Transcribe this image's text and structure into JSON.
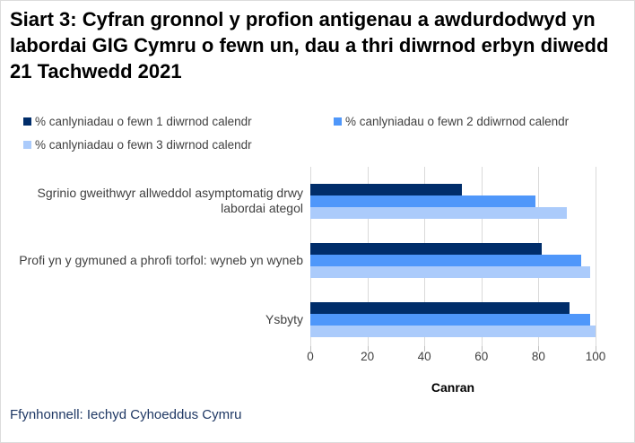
{
  "title": "Siart 3: Cyfran gronnol y profion antigenau a awdurdodwyd yn labordai GIG Cymru o fewn un, dau a thri diwrnod erbyn diwedd 21 Tachwedd 2021",
  "source": "Ffynhonnell: Iechyd Cyhoeddus Cymru",
  "colors": {
    "gridline": "#d9d9d9",
    "text": "#404040",
    "title": "#000000",
    "source_text": "#1f3864"
  },
  "chart_data": {
    "type": "bar",
    "orientation": "horizontal",
    "title": "Siart 3: Cyfran gronnol y profion antigenau a awdurdodwyd yn labordai GIG Cymru o fewn un, dau a thri diwrnod erbyn diwedd 21 Tachwedd 2021",
    "categories": [
      "Sgrinio gweithwyr allweddol asymptomatig drwy labordai ategol",
      "Profi yn y gymuned a phrofi torfol: wyneb yn wyneb",
      "Ysbyty"
    ],
    "series": [
      {
        "name": "% canlyniadau o fewn 1 diwrnod calendr",
        "color": "#002d6a",
        "values": [
          53,
          81,
          91
        ]
      },
      {
        "name": "% canlyniadau o fewn 2 ddiwrnod calendr",
        "color": "#4f97fa",
        "values": [
          79,
          95,
          98
        ]
      },
      {
        "name": "% canlyniadau o fewn 3 diwrnod calendr",
        "color": "#abcbfb",
        "values": [
          90,
          98,
          100
        ]
      }
    ],
    "xlabel": "Canran",
    "ylabel": "",
    "x_ticks": [
      0,
      20,
      40,
      60,
      80,
      100
    ],
    "xlim": [
      0,
      100
    ],
    "grid": "vertical",
    "legend_position": "top-left"
  }
}
